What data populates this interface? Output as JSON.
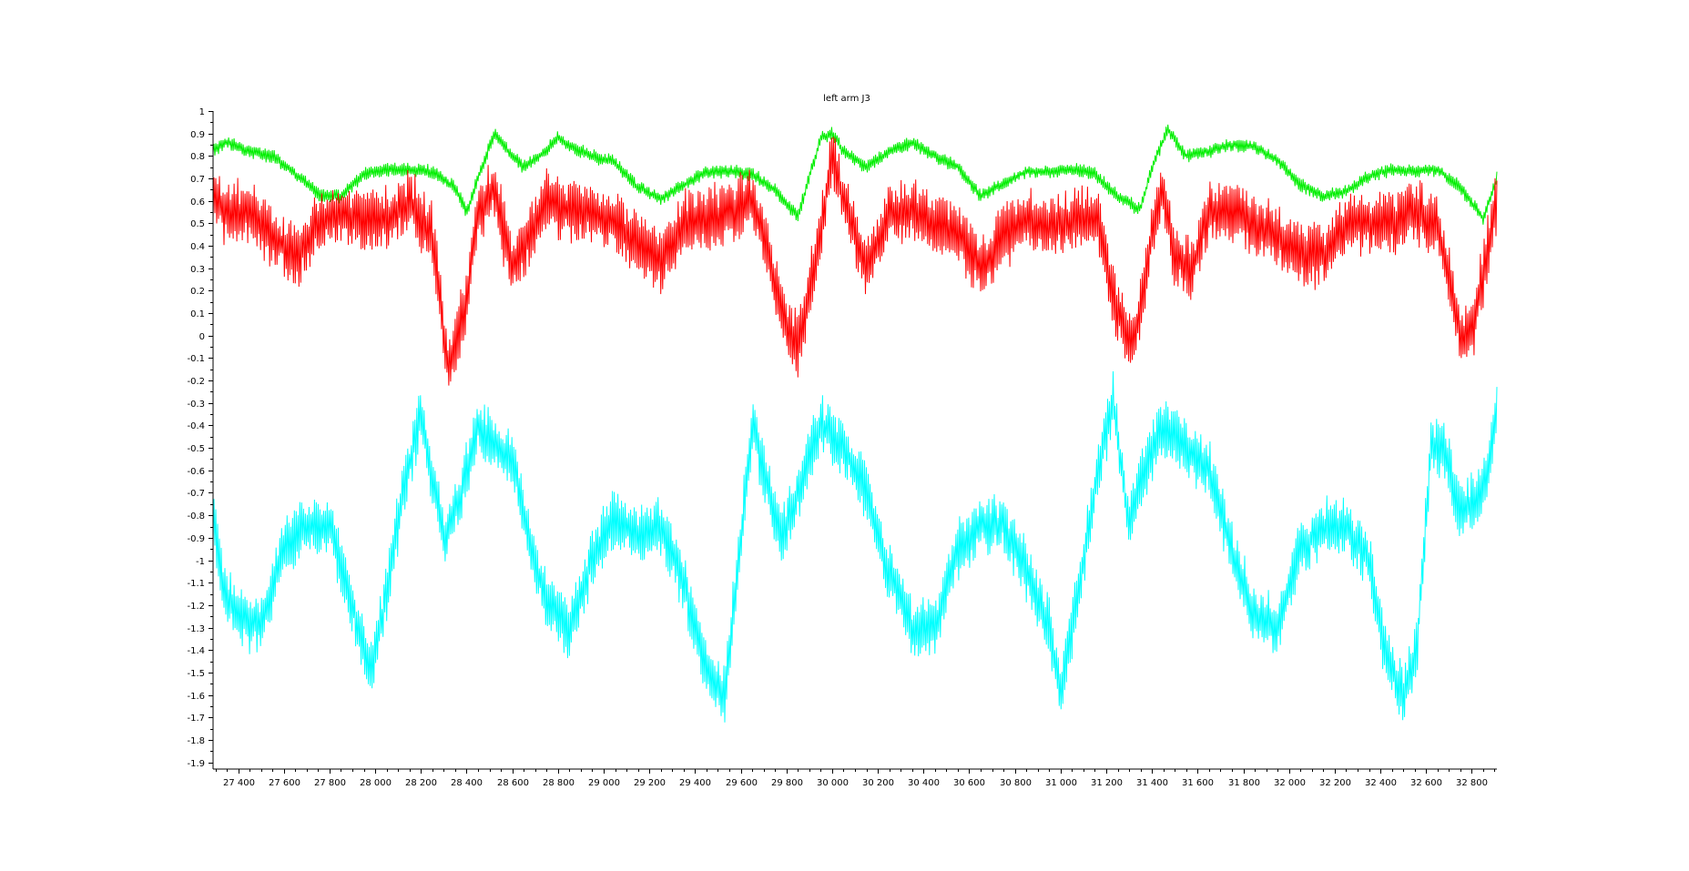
{
  "colors": {
    "green": "#00ee00",
    "red": "#ff0000",
    "cyan": "#00ffff",
    "axis": "#000000",
    "background": "#ffffff"
  },
  "chart_data": {
    "type": "line",
    "title": "left arm J3",
    "xlabel": "",
    "ylabel": "",
    "xlim": [
      27290,
      32910
    ],
    "ylim": [
      -1.93,
      1.0
    ],
    "grid": false,
    "legend": "none",
    "x_ticks": [
      27400,
      27600,
      27800,
      28000,
      28200,
      28400,
      28600,
      28800,
      29000,
      29200,
      29400,
      29600,
      29800,
      30000,
      30200,
      30400,
      30600,
      30800,
      31000,
      31200,
      31400,
      31600,
      31800,
      32000,
      32200,
      32400,
      32600,
      32800
    ],
    "x_tick_labels": [
      "27 400",
      "27 600",
      "27 800",
      "28 000",
      "28 200",
      "28 400",
      "28 600",
      "28 800",
      "29 000",
      "29 200",
      "29 400",
      "29 600",
      "29 800",
      "30 000",
      "30 200",
      "30 400",
      "30 600",
      "30 800",
      "31 000",
      "31 200",
      "31 400",
      "31 600",
      "31 800",
      "32 000",
      "32 200",
      "32 400",
      "32 600",
      "32 800"
    ],
    "y_ticks": [
      1,
      0.9,
      0.8,
      0.7,
      0.6,
      0.5,
      0.4,
      0.3,
      0.2,
      0.1,
      0,
      -0.1,
      -0.2,
      -0.3,
      -0.4,
      -0.5,
      -0.6,
      -0.7,
      -0.8,
      -0.9,
      -1,
      -1.1,
      -1.2,
      -1.3,
      -1.4,
      -1.5,
      -1.6,
      -1.7,
      -1.8,
      -1.9
    ],
    "y_tick_labels": [
      "1",
      "0.9",
      "0.8",
      "0.7",
      "0.6",
      "0.5",
      "0.4",
      "0.3",
      "0.2",
      "0.1",
      "0",
      "-0.1",
      "-0.2",
      "-0.3",
      "-0.4",
      "-0.5",
      "-0.6",
      "-0.7",
      "-0.8",
      "-0.9",
      "-1",
      "-1.1",
      "-1.2",
      "-1.3",
      "-1.4",
      "-1.5",
      "-1.6",
      "-1.7",
      "-1.8",
      "-1.9"
    ],
    "series": [
      {
        "color": "#00ee00",
        "noise": 0.03,
        "x": [
          27290,
          27350,
          27450,
          27550,
          27650,
          27750,
          27850,
          27950,
          28050,
          28150,
          28250,
          28350,
          28400,
          28450,
          28520,
          28600,
          28650,
          28720,
          28800,
          28850,
          28950,
          29050,
          29150,
          29250,
          29350,
          29450,
          29550,
          29650,
          29750,
          29850,
          29950,
          30000,
          30050,
          30150,
          30250,
          30350,
          30450,
          30550,
          30650,
          30750,
          30850,
          30950,
          31050,
          31150,
          31250,
          31350,
          31400,
          31470,
          31550,
          31650,
          31750,
          31850,
          31950,
          32050,
          32150,
          32250,
          32350,
          32450,
          32550,
          32650,
          32750,
          32850,
          32910
        ],
        "y": [
          0.83,
          0.86,
          0.82,
          0.8,
          0.72,
          0.63,
          0.62,
          0.72,
          0.74,
          0.74,
          0.73,
          0.66,
          0.55,
          0.7,
          0.9,
          0.8,
          0.75,
          0.8,
          0.88,
          0.84,
          0.8,
          0.77,
          0.66,
          0.61,
          0.67,
          0.73,
          0.73,
          0.72,
          0.65,
          0.53,
          0.88,
          0.9,
          0.82,
          0.75,
          0.82,
          0.86,
          0.8,
          0.75,
          0.62,
          0.68,
          0.73,
          0.73,
          0.74,
          0.72,
          0.62,
          0.56,
          0.75,
          0.92,
          0.8,
          0.82,
          0.85,
          0.84,
          0.78,
          0.67,
          0.62,
          0.64,
          0.71,
          0.74,
          0.73,
          0.74,
          0.66,
          0.52,
          0.7
        ]
      },
      {
        "color": "#ff0000",
        "noise": 0.14,
        "x": [
          27290,
          27350,
          27450,
          27550,
          27650,
          27750,
          27850,
          27950,
          28050,
          28150,
          28250,
          28320,
          28400,
          28450,
          28520,
          28600,
          28650,
          28750,
          28850,
          28950,
          29050,
          29150,
          29250,
          29350,
          29450,
          29550,
          29650,
          29700,
          29780,
          29850,
          29950,
          30000,
          30050,
          30150,
          30250,
          30350,
          30450,
          30550,
          30650,
          30750,
          30850,
          30950,
          31050,
          31150,
          31250,
          31320,
          31400,
          31450,
          31500,
          31580,
          31650,
          31750,
          31850,
          31950,
          32050,
          32150,
          32250,
          32350,
          32450,
          32550,
          32650,
          32750,
          32800,
          32910
        ],
        "y": [
          0.6,
          0.55,
          0.55,
          0.45,
          0.35,
          0.5,
          0.55,
          0.5,
          0.52,
          0.6,
          0.45,
          -0.15,
          0.15,
          0.55,
          0.65,
          0.3,
          0.4,
          0.6,
          0.55,
          0.55,
          0.5,
          0.42,
          0.32,
          0.5,
          0.52,
          0.55,
          0.6,
          0.45,
          0.1,
          -0.05,
          0.45,
          0.8,
          0.6,
          0.3,
          0.55,
          0.55,
          0.5,
          0.45,
          0.3,
          0.45,
          0.5,
          0.5,
          0.5,
          0.55,
          0.1,
          -0.05,
          0.45,
          0.65,
          0.35,
          0.3,
          0.55,
          0.55,
          0.5,
          0.45,
          0.35,
          0.35,
          0.5,
          0.5,
          0.5,
          0.55,
          0.5,
          0.0,
          0.0,
          0.6
        ]
      },
      {
        "color": "#00ffff",
        "noise": 0.13,
        "x": [
          27290,
          27330,
          27400,
          27500,
          27600,
          27700,
          27800,
          27900,
          27980,
          28050,
          28120,
          28200,
          28250,
          28300,
          28360,
          28450,
          28520,
          28600,
          28650,
          28750,
          28850,
          28950,
          29050,
          29150,
          29250,
          29350,
          29450,
          29530,
          29600,
          29650,
          29700,
          29780,
          29850,
          29950,
          30050,
          30150,
          30250,
          30350,
          30450,
          30550,
          30650,
          30750,
          30850,
          30950,
          31000,
          31100,
          31180,
          31230,
          31300,
          31350,
          31450,
          31550,
          31650,
          31750,
          31850,
          31950,
          32050,
          32150,
          32250,
          32350,
          32420,
          32500,
          32560,
          32620,
          32680,
          32750,
          32850,
          32910
        ],
        "y": [
          -0.8,
          -1.1,
          -1.25,
          -1.3,
          -0.95,
          -0.85,
          -0.85,
          -1.2,
          -1.5,
          -1.15,
          -0.7,
          -0.35,
          -0.65,
          -0.9,
          -0.75,
          -0.4,
          -0.5,
          -0.55,
          -0.8,
          -1.2,
          -1.3,
          -1.0,
          -0.8,
          -0.9,
          -0.85,
          -1.1,
          -1.5,
          -1.6,
          -0.9,
          -0.4,
          -0.6,
          -0.9,
          -0.7,
          -0.4,
          -0.5,
          -0.7,
          -1.05,
          -1.3,
          -1.3,
          -0.95,
          -0.85,
          -0.85,
          -1.05,
          -1.3,
          -1.6,
          -1.0,
          -0.5,
          -0.3,
          -0.85,
          -0.65,
          -0.4,
          -0.5,
          -0.6,
          -0.95,
          -1.25,
          -1.3,
          -0.95,
          -0.85,
          -0.85,
          -1.0,
          -1.4,
          -1.6,
          -1.4,
          -0.5,
          -0.5,
          -0.8,
          -0.7,
          -0.35
        ]
      }
    ]
  }
}
